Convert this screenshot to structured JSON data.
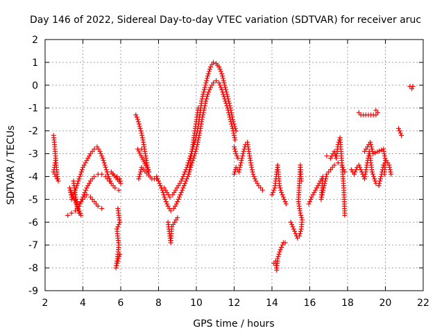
{
  "chart_data": {
    "type": "scatter",
    "title": "Day 146 of 2022, Sidereal Day-to-day VTEC variation (SDTVAR) for receiver aruc",
    "xlabel": "GPS time / hours",
    "ylabel": "SDTVAR / TECUs",
    "xlim": [
      2,
      22
    ],
    "ylim": [
      -9,
      2
    ],
    "xticks": [
      2,
      4,
      6,
      8,
      10,
      12,
      14,
      16,
      18,
      20,
      22
    ],
    "yticks": [
      -9,
      -8,
      -7,
      -6,
      -5,
      -4,
      -3,
      -2,
      -1,
      0,
      1,
      2
    ],
    "grid": true,
    "marker": "+",
    "color": "#ff0000",
    "segments": [
      [
        [
          2.45,
          -2.2
        ],
        [
          2.5,
          -2.6
        ],
        [
          2.55,
          -3.1
        ],
        [
          2.6,
          -3.6
        ],
        [
          2.65,
          -4.0
        ],
        [
          2.7,
          -4.2
        ],
        [
          2.45,
          -3.8
        ],
        [
          2.55,
          -3.3
        ]
      ],
      [
        [
          3.2,
          -5.7
        ],
        [
          3.4,
          -5.6
        ],
        [
          3.6,
          -5.5
        ],
        [
          3.8,
          -5.3
        ],
        [
          4.0,
          -4.9
        ],
        [
          4.2,
          -4.5
        ],
        [
          4.4,
          -4.2
        ],
        [
          4.6,
          -4.0
        ],
        [
          4.8,
          -3.9
        ],
        [
          5.0,
          -3.9
        ],
        [
          5.2,
          -4.0
        ],
        [
          5.4,
          -4.2
        ]
      ],
      [
        [
          3.4,
          -5.0
        ],
        [
          3.6,
          -4.6
        ],
        [
          3.8,
          -4.1
        ],
        [
          4.0,
          -3.6
        ],
        [
          4.2,
          -3.3
        ],
        [
          4.4,
          -3.0
        ],
        [
          4.6,
          -2.8
        ],
        [
          4.75,
          -2.7
        ],
        [
          4.9,
          -2.9
        ],
        [
          5.05,
          -3.2
        ],
        [
          5.2,
          -3.6
        ],
        [
          5.35,
          -4.0
        ],
        [
          5.5,
          -4.3
        ],
        [
          5.7,
          -4.5
        ],
        [
          5.9,
          -4.6
        ]
      ],
      [
        [
          3.6,
          -5.0
        ],
        [
          3.8,
          -5.2
        ],
        [
          4.0,
          -5.0
        ],
        [
          4.2,
          -4.8
        ],
        [
          4.4,
          -4.9
        ],
        [
          4.6,
          -5.1
        ],
        [
          4.8,
          -5.3
        ],
        [
          5.0,
          -5.4
        ]
      ],
      [
        [
          3.5,
          -4.2
        ],
        [
          3.55,
          -4.5
        ],
        [
          3.6,
          -4.8
        ],
        [
          3.7,
          -5.3
        ],
        [
          3.8,
          -5.6
        ],
        [
          3.9,
          -5.7
        ],
        [
          3.3,
          -4.5
        ],
        [
          3.4,
          -4.9
        ]
      ],
      [
        [
          5.6,
          -3.9
        ],
        [
          5.8,
          -4.0
        ],
        [
          5.95,
          -4.1
        ],
        [
          6.0,
          -4.3
        ],
        [
          5.5,
          -3.8
        ]
      ],
      [
        [
          5.85,
          -5.4
        ],
        [
          5.9,
          -5.7
        ],
        [
          5.95,
          -6.0
        ],
        [
          5.8,
          -6.3
        ],
        [
          5.85,
          -6.7
        ],
        [
          5.9,
          -7.0
        ],
        [
          5.85,
          -7.4
        ],
        [
          5.8,
          -7.7
        ],
        [
          5.75,
          -8.0
        ],
        [
          5.95,
          -7.4
        ]
      ],
      [
        [
          6.8,
          -1.3
        ],
        [
          6.9,
          -1.5
        ],
        [
          7.0,
          -1.8
        ],
        [
          7.1,
          -2.1
        ],
        [
          7.2,
          -2.5
        ],
        [
          7.3,
          -3.0
        ],
        [
          7.4,
          -3.5
        ],
        [
          7.5,
          -3.8
        ],
        [
          6.9,
          -2.8
        ],
        [
          7.1,
          -2.8
        ]
      ],
      [
        [
          6.95,
          -4.1
        ],
        [
          7.05,
          -3.8
        ],
        [
          7.1,
          -3.6
        ],
        [
          7.65,
          -4.1
        ],
        [
          7.9,
          -4.1
        ]
      ],
      [
        [
          7.9,
          -4.0
        ],
        [
          8.05,
          -4.3
        ],
        [
          8.2,
          -4.6
        ],
        [
          8.35,
          -5.0
        ],
        [
          8.5,
          -5.3
        ],
        [
          8.65,
          -5.5
        ],
        [
          8.8,
          -5.4
        ],
        [
          8.95,
          -5.2
        ],
        [
          9.1,
          -4.9
        ],
        [
          9.25,
          -4.6
        ],
        [
          9.4,
          -4.3
        ],
        [
          9.55,
          -4.0
        ],
        [
          9.7,
          -3.6
        ],
        [
          9.85,
          -3.2
        ],
        [
          10.0,
          -2.8
        ],
        [
          10.1,
          -2.4
        ],
        [
          10.2,
          -2.0
        ],
        [
          10.3,
          -1.5
        ],
        [
          10.4,
          -1.1
        ],
        [
          10.5,
          -0.7
        ],
        [
          10.6,
          -0.4
        ],
        [
          10.75,
          -0.1
        ],
        [
          10.9,
          0.1
        ],
        [
          11.05,
          0.2
        ],
        [
          11.2,
          0.1
        ],
        [
          11.35,
          -0.2
        ],
        [
          11.5,
          -0.6
        ],
        [
          11.65,
          -1.0
        ],
        [
          11.8,
          -1.5
        ],
        [
          11.95,
          -2.0
        ],
        [
          12.05,
          -2.4
        ]
      ],
      [
        [
          8.3,
          -4.5
        ],
        [
          8.45,
          -4.7
        ],
        [
          8.6,
          -4.9
        ],
        [
          8.75,
          -4.8
        ],
        [
          8.9,
          -4.6
        ],
        [
          9.05,
          -4.4
        ],
        [
          9.2,
          -4.2
        ],
        [
          9.35,
          -3.9
        ],
        [
          9.5,
          -3.6
        ],
        [
          9.65,
          -3.2
        ],
        [
          9.8,
          -2.8
        ],
        [
          9.95,
          -2.4
        ],
        [
          10.1,
          -1.8
        ],
        [
          10.2,
          -1.2
        ],
        [
          10.3,
          -0.6
        ],
        [
          10.45,
          -0.1
        ],
        [
          10.6,
          0.4
        ],
        [
          10.75,
          0.8
        ],
        [
          10.9,
          1.0
        ],
        [
          11.05,
          0.95
        ],
        [
          11.2,
          0.8
        ],
        [
          11.35,
          0.5
        ],
        [
          11.5,
          0.0
        ],
        [
          11.65,
          -0.5
        ],
        [
          11.8,
          -1.0
        ],
        [
          11.95,
          -1.6
        ],
        [
          12.1,
          -2.0
        ]
      ],
      [
        [
          8.5,
          -6.0
        ],
        [
          8.55,
          -6.3
        ],
        [
          8.6,
          -6.6
        ],
        [
          8.65,
          -6.9
        ],
        [
          8.7,
          -6.2
        ],
        [
          9.0,
          -5.8
        ]
      ],
      [
        [
          9.6,
          -3.9
        ],
        [
          9.75,
          -3.0
        ],
        [
          9.85,
          -2.4
        ],
        [
          10.1,
          -1.0
        ]
      ],
      [
        [
          12.0,
          -3.9
        ],
        [
          12.1,
          -3.6
        ],
        [
          12.25,
          -3.8
        ],
        [
          12.5,
          -2.9
        ],
        [
          12.6,
          -2.6
        ],
        [
          12.7,
          -2.5
        ],
        [
          12.8,
          -3.0
        ],
        [
          12.9,
          -3.5
        ],
        [
          13.0,
          -3.9
        ],
        [
          13.15,
          -4.2
        ],
        [
          13.3,
          -4.4
        ],
        [
          13.5,
          -4.6
        ]
      ],
      [
        [
          12.0,
          -2.7
        ],
        [
          12.1,
          -3.0
        ],
        [
          12.2,
          -3.2
        ]
      ],
      [
        [
          14.1,
          -7.8
        ],
        [
          14.2,
          -7.7
        ],
        [
          14.25,
          -8.1
        ],
        [
          14.3,
          -7.6
        ],
        [
          14.4,
          -7.3
        ],
        [
          14.5,
          -7.1
        ],
        [
          14.6,
          -6.9
        ],
        [
          14.7,
          -6.9
        ]
      ],
      [
        [
          14.0,
          -4.8
        ],
        [
          14.15,
          -4.5
        ],
        [
          14.3,
          -3.5
        ],
        [
          14.4,
          -4.4
        ],
        [
          14.5,
          -4.7
        ],
        [
          14.6,
          -4.9
        ],
        [
          14.7,
          -5.1
        ],
        [
          14.75,
          -5.2
        ]
      ],
      [
        [
          15.0,
          -6.0
        ],
        [
          15.15,
          -6.3
        ],
        [
          15.25,
          -6.5
        ],
        [
          15.35,
          -6.7
        ],
        [
          15.45,
          -6.6
        ],
        [
          15.55,
          -6.3
        ],
        [
          15.6,
          -5.9
        ],
        [
          15.5,
          -5.6
        ],
        [
          15.4,
          -5.1
        ],
        [
          15.5,
          -3.5
        ],
        [
          15.55,
          -4.2
        ]
      ],
      [
        [
          15.95,
          -5.2
        ],
        [
          16.1,
          -4.9
        ],
        [
          16.3,
          -4.6
        ],
        [
          16.5,
          -4.3
        ],
        [
          16.7,
          -4.0
        ],
        [
          16.6,
          -5.0
        ],
        [
          16.9,
          -3.9
        ],
        [
          17.1,
          -3.7
        ],
        [
          17.3,
          -3.5
        ],
        [
          17.5,
          -3.4
        ],
        [
          17.7,
          -3.5
        ],
        [
          17.85,
          -3.8
        ]
      ],
      [
        [
          16.9,
          -3.1
        ],
        [
          17.1,
          -3.2
        ],
        [
          17.3,
          -2.9
        ],
        [
          17.4,
          -3.2
        ],
        [
          17.5,
          -2.6
        ],
        [
          17.6,
          -2.3
        ],
        [
          17.8,
          -4.5
        ],
        [
          17.85,
          -5.7
        ]
      ],
      [
        [
          18.2,
          -3.7
        ],
        [
          18.35,
          -3.9
        ],
        [
          18.5,
          -3.6
        ],
        [
          18.6,
          -3.5
        ],
        [
          18.75,
          -3.8
        ],
        [
          18.9,
          -4.1
        ],
        [
          19.0,
          -3.6
        ],
        [
          19.15,
          -2.9
        ],
        [
          19.3,
          -3.8
        ],
        [
          19.5,
          -4.3
        ],
        [
          19.65,
          -4.4
        ],
        [
          19.8,
          -3.9
        ],
        [
          19.9,
          -3.5
        ],
        [
          20.05,
          -3.3
        ],
        [
          20.2,
          -3.5
        ],
        [
          20.3,
          -3.9
        ]
      ],
      [
        [
          18.6,
          -1.2
        ],
        [
          18.7,
          -1.3
        ],
        [
          19.5,
          -1.3
        ],
        [
          19.6,
          -1.2
        ],
        [
          19.5,
          -1.1
        ]
      ],
      [
        [
          18.9,
          -2.9
        ],
        [
          19.05,
          -2.7
        ],
        [
          19.2,
          -2.5
        ],
        [
          19.35,
          -3.0
        ],
        [
          19.9,
          -2.8
        ],
        [
          20.0,
          -3.3
        ],
        [
          19.95,
          -3.9
        ]
      ],
      [
        [
          20.7,
          -1.9
        ],
        [
          20.8,
          -2.1
        ],
        [
          20.85,
          -2.2
        ]
      ],
      [
        [
          21.3,
          -0.05
        ],
        [
          21.4,
          -0.15
        ],
        [
          21.45,
          -0.05
        ]
      ]
    ]
  }
}
